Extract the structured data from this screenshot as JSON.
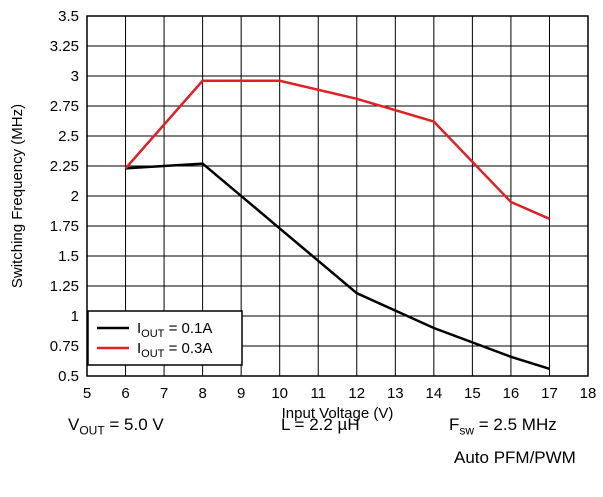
{
  "chart_data": {
    "type": "line",
    "title": "",
    "xlabel": "Input Voltage (V)",
    "ylabel": "Switching Frequency (MHz)",
    "xlim": [
      5,
      18
    ],
    "ylim": [
      0.5,
      3.5
    ],
    "x_ticks": [
      "5",
      "6",
      "7",
      "8",
      "9",
      "10",
      "11",
      "12",
      "13",
      "14",
      "15",
      "16",
      "17",
      "18"
    ],
    "y_ticks": [
      "0.5",
      "0.75",
      "1",
      "1.25",
      "1.5",
      "1.75",
      "2",
      "2.25",
      "2.5",
      "2.75",
      "3",
      "3.25",
      "3.5"
    ],
    "grid": true,
    "legend_position": "bottom-left",
    "series": [
      {
        "name_main": "I",
        "name_sub": "OUT",
        "name_rest": " = 0.1A",
        "color": "#000000",
        "x": [
          6,
          8,
          10,
          12,
          14,
          16,
          17
        ],
        "y": [
          2.23,
          2.27,
          1.73,
          1.19,
          0.9,
          0.66,
          0.56
        ]
      },
      {
        "name_main": "I",
        "name_sub": "OUT",
        "name_rest": " = 0.3A",
        "color": "#e41e25",
        "x": [
          6,
          8,
          10,
          12,
          14,
          16,
          17
        ],
        "y": [
          2.23,
          2.96,
          2.96,
          2.81,
          2.62,
          1.95,
          1.81
        ]
      }
    ]
  },
  "conditions": {
    "vout_main": "V",
    "vout_sub": "OUT",
    "vout_rest": " = 5.0 V",
    "inductor": "L = 2.2 µH",
    "fsw_main": "F",
    "fsw_sub": "sw",
    "fsw_rest": " = 2.5 MHz",
    "mode": "Auto PFM/PWM"
  }
}
